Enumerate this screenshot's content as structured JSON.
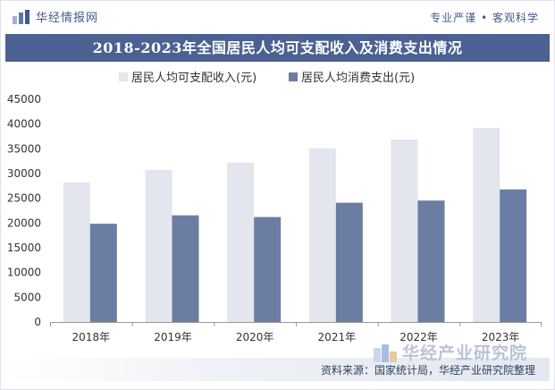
{
  "header": {
    "logo_text": "华经情报网",
    "slogan": "专业严谨 • 客观科学"
  },
  "footer": {
    "source": "资料来源：国家统计局，华经产业研究院整理",
    "brand": "华经产业研究院"
  },
  "colors": {
    "income": "#e3e6ee",
    "spending": "#6b7da3",
    "title_band": "#4b6192",
    "axis": "#999999"
  },
  "chart_data": {
    "type": "bar",
    "title": "2018-2023年全国居民人均可支配收入及消费支出情况",
    "categories": [
      "2018年",
      "2019年",
      "2020年",
      "2021年",
      "2022年",
      "2023年"
    ],
    "series": [
      {
        "name": "居民人均可支配收入(元)",
        "values": [
          28228,
          30733,
          32189,
          35128,
          36883,
          39218
        ]
      },
      {
        "name": "居民人均消费支出(元)",
        "values": [
          19853,
          21559,
          21210,
          24100,
          24538,
          26796
        ]
      }
    ],
    "ylim": [
      0,
      45000
    ],
    "yticks": [
      0,
      5000,
      10000,
      15000,
      20000,
      25000,
      30000,
      35000,
      40000,
      45000
    ],
    "legend_position": "top-center",
    "grid": false
  }
}
